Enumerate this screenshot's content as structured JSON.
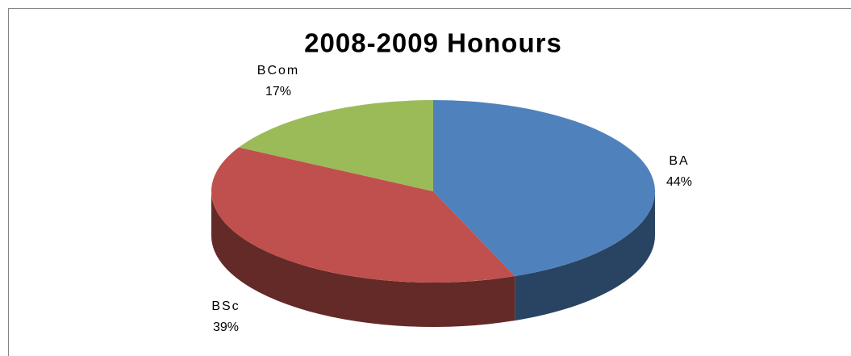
{
  "chart_data": {
    "type": "pie",
    "title": "2008-2009 Honours",
    "categories": [
      "BA",
      "BSc",
      "BCom"
    ],
    "values": [
      44,
      39,
      17
    ],
    "value_labels": [
      "44%",
      "39%",
      "17%"
    ],
    "colors": [
      "#4f81bd",
      "#c0504d",
      "#9bbb59"
    ]
  }
}
